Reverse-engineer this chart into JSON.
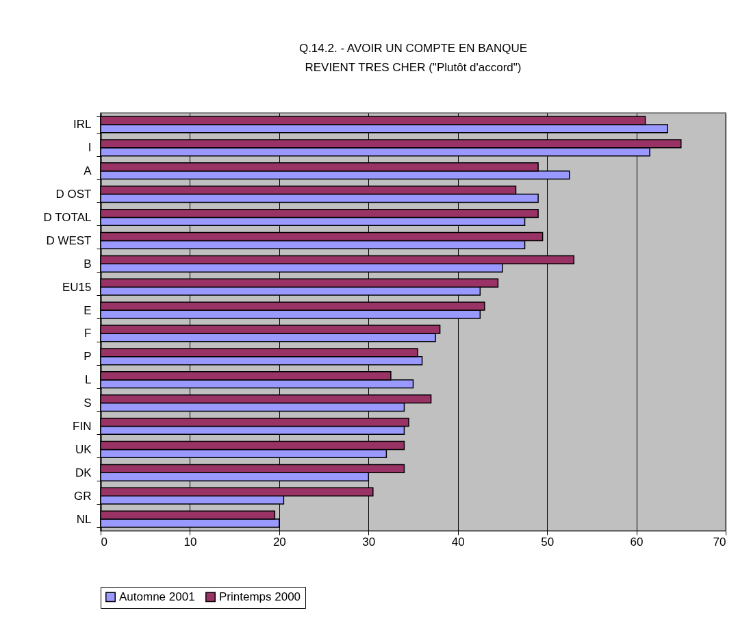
{
  "chart_data": {
    "type": "bar",
    "orientation": "horizontal",
    "title": "Q.14.2. - AVOIR UN COMPTE EN BANQUE\nREVIENT TRES CHER (\"Plutôt d'accord\")",
    "categories": [
      "IRL",
      "I",
      "A",
      "D OST",
      "D TOTAL",
      "D WEST",
      "B",
      "EU15",
      "E",
      "F",
      "P",
      "L",
      "S",
      "FIN",
      "UK",
      "DK",
      "GR",
      "NL"
    ],
    "series": [
      {
        "name": "Automne 2001",
        "color": "#9999ff",
        "values": [
          63.5,
          61.5,
          52.5,
          49,
          47.5,
          47.5,
          45,
          42.5,
          42.5,
          37.5,
          36,
          35,
          34,
          34,
          32,
          30,
          20.5,
          20
        ]
      },
      {
        "name": "Printemps 2000",
        "color": "#993366",
        "values": [
          61,
          65,
          49,
          46.5,
          49,
          49.5,
          53,
          44.5,
          43,
          38,
          35.5,
          32.5,
          37,
          34.5,
          34,
          34,
          30.5,
          19.5
        ]
      }
    ],
    "xlim": [
      0,
      70
    ],
    "xticks": [
      0,
      10,
      20,
      30,
      40,
      50,
      60,
      70
    ],
    "grid": "x",
    "legend": "bottom"
  }
}
